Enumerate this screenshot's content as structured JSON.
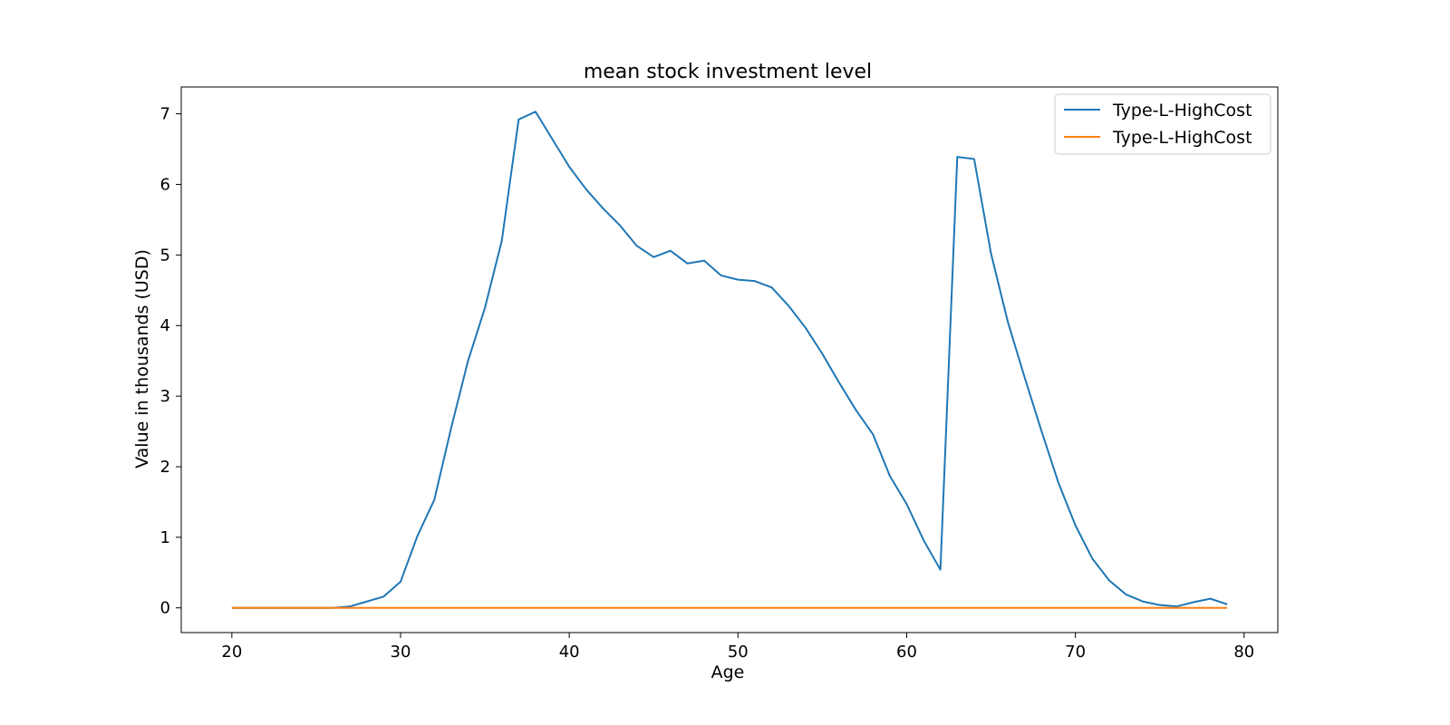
{
  "chart_data": {
    "type": "line",
    "title": "mean stock investment level",
    "xlabel": "Age",
    "ylabel": "Value in thousands (USD)",
    "xlim": [
      17,
      82
    ],
    "ylim": [
      -0.35,
      7.38
    ],
    "xticks": [
      20,
      30,
      40,
      50,
      60,
      70,
      80
    ],
    "yticks": [
      0,
      1,
      2,
      3,
      4,
      5,
      6,
      7
    ],
    "grid": false,
    "legend_position": "top-right",
    "x": [
      20,
      21,
      22,
      23,
      24,
      25,
      26,
      27,
      28,
      29,
      30,
      31,
      32,
      33,
      34,
      35,
      36,
      37,
      38,
      39,
      40,
      41,
      42,
      43,
      44,
      45,
      46,
      47,
      48,
      49,
      50,
      51,
      52,
      53,
      54,
      55,
      56,
      57,
      58,
      59,
      60,
      61,
      62,
      63,
      64,
      65,
      66,
      67,
      68,
      69,
      70,
      71,
      72,
      73,
      74,
      75,
      76,
      77,
      78,
      79
    ],
    "series": [
      {
        "name": "Type-L-HighCost",
        "color": "#1f77b4",
        "values": [
          0,
          0,
          0,
          0,
          0,
          0,
          0,
          0.02,
          0.09,
          0.16,
          0.37,
          1.02,
          1.53,
          2.55,
          3.5,
          4.25,
          5.2,
          6.92,
          7.03,
          6.64,
          6.25,
          5.93,
          5.66,
          5.42,
          5.13,
          4.97,
          5.06,
          4.88,
          4.92,
          4.71,
          4.65,
          4.63,
          4.54,
          4.28,
          3.97,
          3.6,
          3.19,
          2.8,
          2.46,
          1.87,
          1.47,
          0.96,
          0.54,
          6.39,
          6.36,
          5.02,
          4.05,
          3.26,
          2.5,
          1.77,
          1.17,
          0.7,
          0.39,
          0.19,
          0.09,
          0.04,
          0.02,
          0.08,
          0.13,
          0.05
        ]
      },
      {
        "name": "Type-L-HighCost",
        "color": "#ff7f0e",
        "values": [
          0,
          0,
          0,
          0,
          0,
          0,
          0,
          0,
          0,
          0,
          0,
          0,
          0,
          0,
          0,
          0,
          0,
          0,
          0,
          0,
          0,
          0,
          0,
          0,
          0,
          0,
          0,
          0,
          0,
          0,
          0,
          0,
          0,
          0,
          0,
          0,
          0,
          0,
          0,
          0,
          0,
          0,
          0,
          0,
          0,
          0,
          0,
          0,
          0,
          0,
          0,
          0,
          0,
          0,
          0,
          0,
          0,
          0,
          0,
          0
        ]
      }
    ]
  }
}
